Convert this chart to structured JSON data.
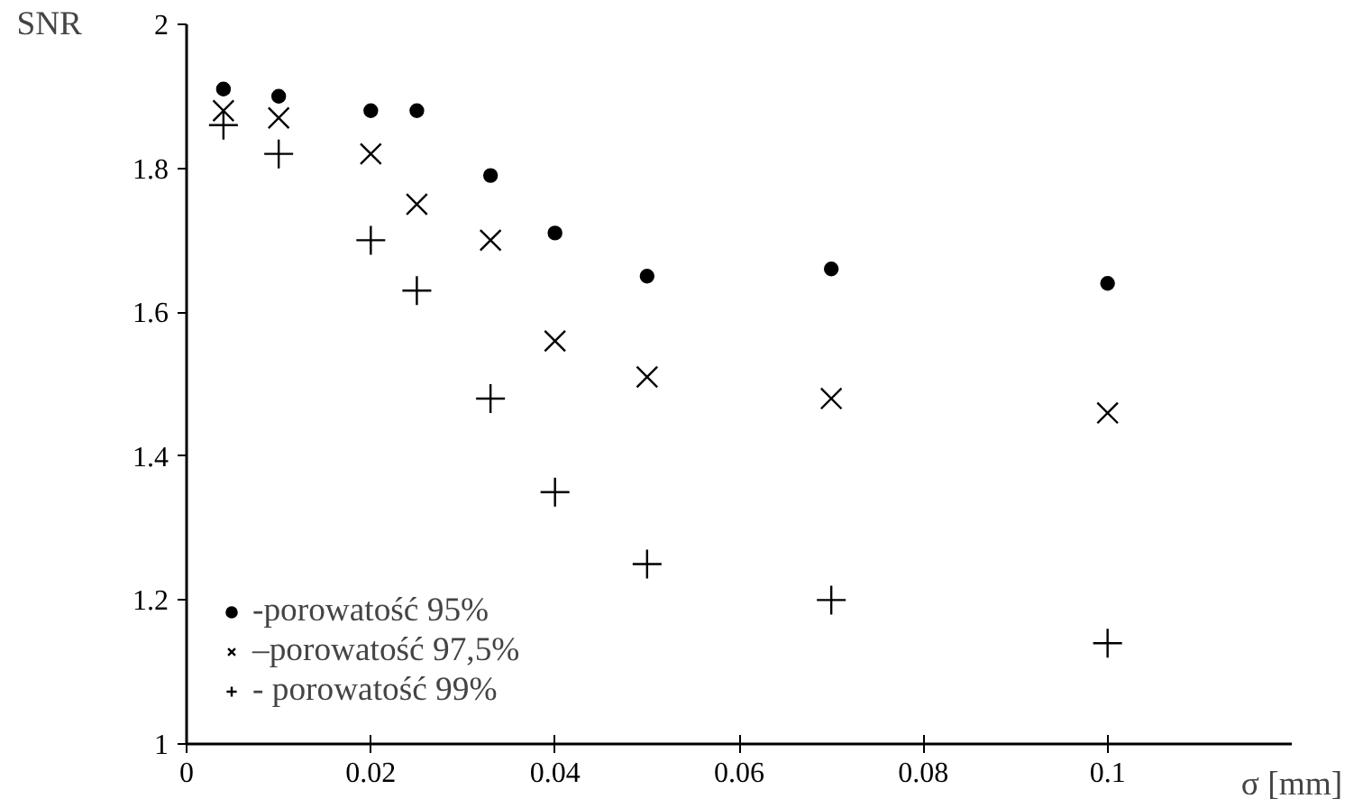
{
  "chart_data": {
    "type": "scatter",
    "xlabel": "σ [mm]",
    "ylabel": "SNR",
    "x": [
      0.004,
      0.01,
      0.02,
      0.025,
      0.033,
      0.04,
      0.05,
      0.07,
      0.1
    ],
    "series": [
      {
        "name": "-porowatość 95%",
        "color": "#000000",
        "marker": "circle",
        "values": [
          1.91,
          1.9,
          1.88,
          1.88,
          1.79,
          1.71,
          1.65,
          1.66,
          1.64
        ]
      },
      {
        "name": "–porowatość 97,5%",
        "color": "#000000",
        "marker": "x",
        "values": [
          1.88,
          1.87,
          1.82,
          1.75,
          1.7,
          1.56,
          1.51,
          1.48,
          1.46
        ]
      },
      {
        "name": "- porowatość 99%",
        "color": "#000000",
        "marker": "cross",
        "values": [
          1.86,
          1.82,
          1.7,
          1.63,
          1.48,
          1.35,
          1.25,
          1.2,
          1.14
        ]
      }
    ],
    "xlim": [
      0,
      0.12
    ],
    "ylim": [
      1,
      2
    ],
    "xticks": [
      0,
      0.02,
      0.04,
      0.06,
      0.08,
      0.1
    ],
    "yticks": [
      1,
      1.2,
      1.4,
      1.6,
      1.8,
      2
    ],
    "grid": false,
    "legend": "bottom left"
  }
}
